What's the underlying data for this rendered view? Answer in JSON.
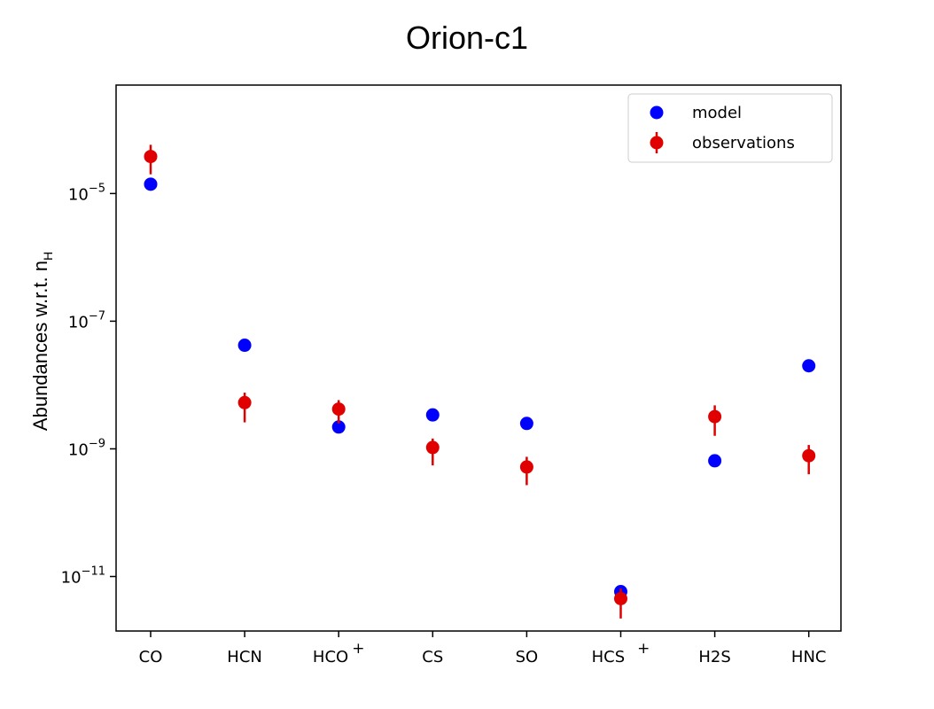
{
  "chart_data": {
    "type": "scatter",
    "title": "Orion-c1",
    "ylabel": "Abundances w.r.t. n",
    "ylabel_subscript": "H",
    "yscale": "log",
    "ylim": [
      1.4e-12,
      0.0005
    ],
    "categories": [
      "CO",
      "HCN",
      "HCO",
      "CS",
      "SO",
      "HCS",
      "H2S",
      "HNC"
    ],
    "category_superscripts": [
      "",
      "",
      "+",
      "",
      "",
      "+",
      "",
      ""
    ],
    "yticks": [
      {
        "value": 1e-11,
        "base": "10",
        "exp": "−11"
      },
      {
        "value": 1e-09,
        "base": "10",
        "exp": "−9"
      },
      {
        "value": 1e-07,
        "base": "10",
        "exp": "−7"
      },
      {
        "value": 1e-05,
        "base": "10",
        "exp": "−5"
      }
    ],
    "grid": false,
    "legend_position": "top-right",
    "series": [
      {
        "name": "model",
        "color": "#0000ff",
        "values": [
          1.4e-05,
          4.2e-08,
          2.2e-09,
          3.4e-09,
          2.5e-09,
          5.8e-12,
          6.5e-10,
          2e-08
        ]
      },
      {
        "name": "observations",
        "color": "#e00000",
        "values": [
          3.8e-05,
          5.3e-09,
          4.2e-09,
          1.05e-09,
          5.2e-10,
          4.5e-12,
          3.2e-09,
          7.8e-10
        ],
        "err_low": [
          2e-05,
          2.6e-09,
          2.5e-09,
          5.5e-10,
          2.7e-10,
          2.2e-12,
          1.6e-09,
          4e-10
        ],
        "err_high": [
          5.8e-05,
          7.6e-09,
          5.8e-09,
          1.45e-09,
          7.5e-10,
          6.5e-12,
          4.8e-09,
          1.15e-09
        ]
      }
    ]
  }
}
